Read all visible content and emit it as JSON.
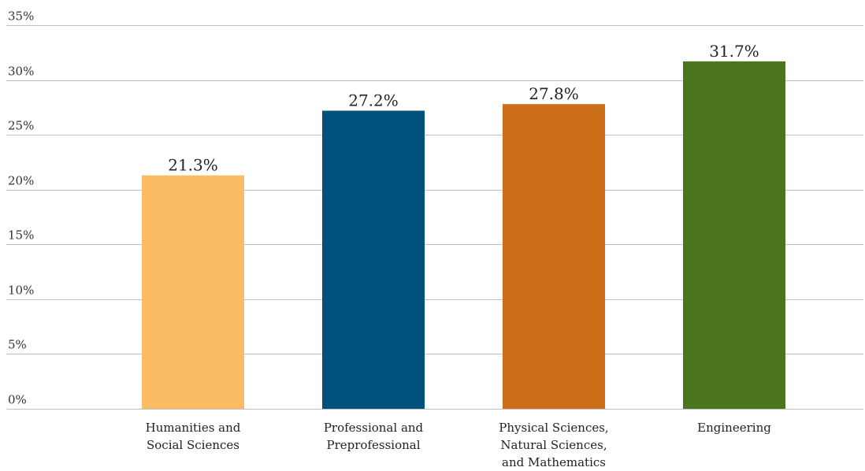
{
  "chart_data": {
    "type": "bar",
    "categories": [
      [
        "Humanities and",
        "Social Sciences"
      ],
      [
        "Professional and",
        "Preprofessional"
      ],
      [
        "Physical Sciences,",
        "Natural Sciences,",
        "and Mathematics"
      ],
      [
        "Engineering"
      ]
    ],
    "values": [
      21.3,
      27.2,
      27.8,
      31.7
    ],
    "value_labels": [
      "21.3%",
      "27.2%",
      "27.8%",
      "31.7%"
    ],
    "colors": [
      "#fbbc63",
      "#00527c",
      "#cd6f19",
      "#4b741e"
    ],
    "ylim": [
      0,
      35
    ],
    "yticks": [
      0,
      5,
      10,
      15,
      20,
      25,
      30,
      35
    ],
    "ytick_labels": [
      "0%",
      "5%",
      "10%",
      "15%",
      "20%",
      "25%",
      "30%",
      "35%"
    ],
    "grid": true,
    "legend": "none"
  }
}
